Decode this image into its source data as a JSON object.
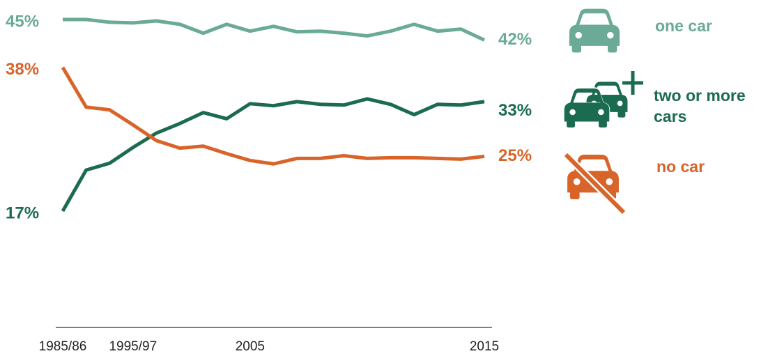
{
  "chart_data": {
    "type": "line",
    "categories": [
      "1985/86",
      null,
      null,
      "1995/97",
      null,
      null,
      null,
      null,
      "2005",
      null,
      null,
      null,
      null,
      null,
      null,
      null,
      null,
      null,
      "2015"
    ],
    "ylim": [
      0,
      45
    ],
    "series": [
      {
        "name": "one car",
        "color": "#6aaa96",
        "values": [
          45,
          45,
          44.6,
          44.5,
          44.8,
          44.3,
          43,
          44.3,
          43.3,
          44,
          43.2,
          43.3,
          43,
          42.6,
          43.3,
          44.3,
          43.3,
          43.6,
          42
        ],
        "value_labels": [
          "45%",
          null,
          null,
          null,
          null,
          null,
          null,
          null,
          null,
          null,
          null,
          null,
          null,
          null,
          null,
          null,
          null,
          null,
          "42%"
        ]
      },
      {
        "name": "two or more cars",
        "color": "#1a6b50",
        "values": [
          17,
          23,
          24,
          26.3,
          28.4,
          29.8,
          31.4,
          30.5,
          32.7,
          32.4,
          33,
          32.6,
          32.5,
          33.4,
          32.6,
          31.1,
          32.6,
          32.5,
          33
        ],
        "value_labels": [
          "17%",
          null,
          null,
          null,
          null,
          null,
          null,
          null,
          null,
          null,
          null,
          null,
          null,
          null,
          null,
          null,
          null,
          null,
          "33%"
        ]
      },
      {
        "name": "no car",
        "color": "#d9642a",
        "values": [
          38,
          32.2,
          31.8,
          29.6,
          27.3,
          26.2,
          26.5,
          25.4,
          24.4,
          23.9,
          24.7,
          24.7,
          25.1,
          24.7,
          24.8,
          24.8,
          24.7,
          24.6,
          25
        ],
        "value_labels": [
          "38%",
          null,
          null,
          null,
          null,
          null,
          null,
          null,
          null,
          null,
          null,
          null,
          null,
          null,
          null,
          null,
          null,
          null,
          "25%"
        ]
      }
    ]
  }
}
